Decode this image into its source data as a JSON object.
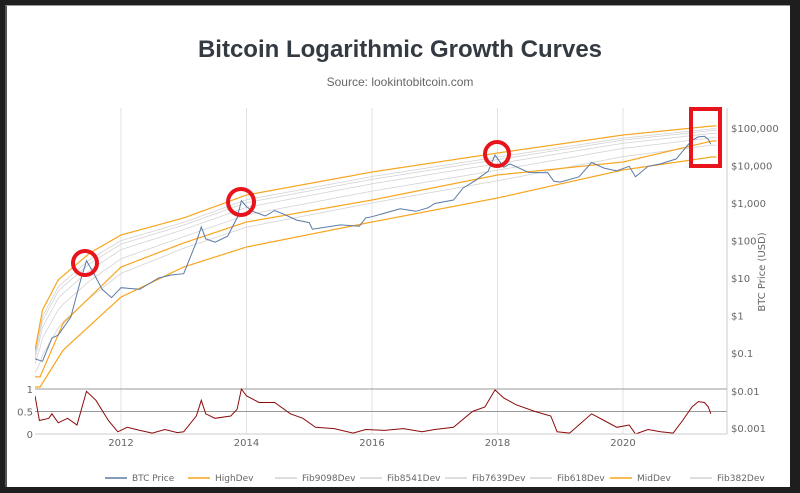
{
  "chart_data": {
    "type": "line",
    "title": "Bitcoin Logarithmic Growth Curves",
    "subtitle": "Source: lookintobitcoin.com",
    "ylabel": "BTC Price (USD)",
    "y_scale": "log",
    "ylim": [
      0.01,
      100000
    ],
    "xlim": [
      2010.63,
      2021.5
    ],
    "x_ticks": [
      "2012",
      "2014",
      "2016",
      "2018",
      "2020"
    ],
    "y_ticks": [
      "$100,000",
      "$10,000",
      "$1,000",
      "$100",
      "$10",
      "$1",
      "$0.1",
      "$0.01",
      "$0.001"
    ],
    "grid": "vertical",
    "legend_position": "bottom",
    "colors": {
      "btc": "#5b7aa6",
      "dev": "#f7a51c",
      "fib": "#d3d3d3",
      "oscillator": "#8b0b0b",
      "annotation": "#e8141c"
    },
    "legend": [
      {
        "name": "BTC Price",
        "color": "#5b7aa6"
      },
      {
        "name": "HighDev",
        "color": "#f7a51c"
      },
      {
        "name": "Fib9098Dev",
        "color": "#d3d3d3"
      },
      {
        "name": "Fib8541Dev",
        "color": "#d3d3d3"
      },
      {
        "name": "Fib7639Dev",
        "color": "#d3d3d3"
      },
      {
        "name": "Fib618Dev",
        "color": "#d3d3d3"
      },
      {
        "name": "MidDev",
        "color": "#f7a51c"
      },
      {
        "name": "Fib382Dev",
        "color": "#d3d3d3"
      }
    ],
    "curves": {
      "HighDev": [
        [
          2010.63,
          0.12
        ],
        [
          2010.75,
          1.4
        ],
        [
          2011.0,
          8.9
        ],
        [
          2011.5,
          46
        ],
        [
          2012.0,
          140
        ],
        [
          2013.0,
          400
        ],
        [
          2014.0,
          1630
        ],
        [
          2016.0,
          6700
        ],
        [
          2018.0,
          21500
        ],
        [
          2020.0,
          65000
        ],
        [
          2021.42,
          113000
        ]
      ],
      "MidDev": [
        [
          2010.71,
          0.023
        ],
        [
          2011.08,
          0.63
        ],
        [
          2012.0,
          19.6
        ],
        [
          2013.0,
          86
        ],
        [
          2014.0,
          311
        ],
        [
          2016.0,
          1200
        ],
        [
          2018.0,
          5580
        ],
        [
          2020.0,
          12400
        ],
        [
          2021.42,
          45000
        ]
      ],
      "LowDev": [
        [
          2010.71,
          0.0124
        ],
        [
          2011.08,
          0.12
        ],
        [
          2012.0,
          3.1
        ],
        [
          2013.0,
          19.6
        ],
        [
          2014.0,
          67
        ],
        [
          2016.0,
          311
        ],
        [
          2018.0,
          1360
        ],
        [
          2020.0,
          7600
        ],
        [
          2021.42,
          16900
        ]
      ]
    },
    "fib_levels": [
      {
        "name": "Fib9098Dev",
        "level": 0.9098
      },
      {
        "name": "Fib8541Dev",
        "level": 0.8541
      },
      {
        "name": "Fib7639Dev",
        "level": 0.7639
      },
      {
        "name": "Fib618Dev",
        "level": 0.618
      },
      {
        "name": "Fib382Dev",
        "level": 0.382
      }
    ],
    "btc_price": [
      [
        2010.63,
        0.07
      ],
      [
        2010.75,
        0.06
      ],
      [
        2010.9,
        0.25
      ],
      [
        2011.0,
        0.3
      ],
      [
        2011.2,
        0.9
      ],
      [
        2011.35,
        8
      ],
      [
        2011.45,
        29
      ],
      [
        2011.55,
        15
      ],
      [
        2011.7,
        5
      ],
      [
        2011.85,
        3
      ],
      [
        2012.0,
        5.5
      ],
      [
        2012.3,
        5
      ],
      [
        2012.6,
        10
      ],
      [
        2012.8,
        12
      ],
      [
        2013.0,
        13
      ],
      [
        2013.2,
        90
      ],
      [
        2013.28,
        230
      ],
      [
        2013.35,
        110
      ],
      [
        2013.5,
        90
      ],
      [
        2013.7,
        130
      ],
      [
        2013.85,
        400
      ],
      [
        2013.92,
        1150
      ],
      [
        2014.0,
        800
      ],
      [
        2014.1,
        600
      ],
      [
        2014.3,
        450
      ],
      [
        2014.45,
        630
      ],
      [
        2014.6,
        500
      ],
      [
        2014.8,
        350
      ],
      [
        2015.0,
        300
      ],
      [
        2015.05,
        200
      ],
      [
        2015.5,
        260
      ],
      [
        2015.8,
        240
      ],
      [
        2015.9,
        400
      ],
      [
        2016.0,
        430
      ],
      [
        2016.45,
        700
      ],
      [
        2016.7,
        600
      ],
      [
        2016.9,
        750
      ],
      [
        2017.0,
        970
      ],
      [
        2017.3,
        1200
      ],
      [
        2017.45,
        2500
      ],
      [
        2017.65,
        4000
      ],
      [
        2017.85,
        7000
      ],
      [
        2017.96,
        19000
      ],
      [
        2018.1,
        9000
      ],
      [
        2018.2,
        11000
      ],
      [
        2018.5,
        6500
      ],
      [
        2018.8,
        6400
      ],
      [
        2018.9,
        3800
      ],
      [
        2019.0,
        3600
      ],
      [
        2019.3,
        5000
      ],
      [
        2019.5,
        12000
      ],
      [
        2019.7,
        8500
      ],
      [
        2019.9,
        7200
      ],
      [
        2020.1,
        9500
      ],
      [
        2020.2,
        5000
      ],
      [
        2020.4,
        9500
      ],
      [
        2020.6,
        11000
      ],
      [
        2020.85,
        15000
      ],
      [
        2021.0,
        30000
      ],
      [
        2021.1,
        47000
      ],
      [
        2021.2,
        58000
      ],
      [
        2021.3,
        60000
      ],
      [
        2021.36,
        50000
      ],
      [
        2021.4,
        37000
      ]
    ],
    "oscillator": {
      "y_ticks": [
        "0",
        "0.5",
        "1"
      ],
      "ylim": [
        0,
        1
      ],
      "values": [
        [
          2010.63,
          0.85
        ],
        [
          2010.7,
          0.3
        ],
        [
          2010.85,
          0.35
        ],
        [
          2010.9,
          0.45
        ],
        [
          2011.0,
          0.25
        ],
        [
          2011.15,
          0.35
        ],
        [
          2011.3,
          0.2
        ],
        [
          2011.45,
          0.95
        ],
        [
          2011.6,
          0.75
        ],
        [
          2011.8,
          0.3
        ],
        [
          2011.95,
          0.05
        ],
        [
          2012.1,
          0.15
        ],
        [
          2012.3,
          0.08
        ],
        [
          2012.5,
          0.02
        ],
        [
          2012.7,
          0.1
        ],
        [
          2012.9,
          0.03
        ],
        [
          2013.0,
          0.05
        ],
        [
          2013.2,
          0.4
        ],
        [
          2013.28,
          0.75
        ],
        [
          2013.35,
          0.45
        ],
        [
          2013.5,
          0.35
        ],
        [
          2013.75,
          0.4
        ],
        [
          2013.85,
          0.55
        ],
        [
          2013.92,
          1.0
        ],
        [
          2014.0,
          0.85
        ],
        [
          2014.2,
          0.7
        ],
        [
          2014.45,
          0.7
        ],
        [
          2014.7,
          0.45
        ],
        [
          2014.9,
          0.35
        ],
        [
          2015.1,
          0.15
        ],
        [
          2015.4,
          0.12
        ],
        [
          2015.7,
          0.02
        ],
        [
          2015.9,
          0.1
        ],
        [
          2016.2,
          0.08
        ],
        [
          2016.5,
          0.12
        ],
        [
          2016.8,
          0.05
        ],
        [
          2017.0,
          0.1
        ],
        [
          2017.3,
          0.15
        ],
        [
          2017.6,
          0.5
        ],
        [
          2017.8,
          0.6
        ],
        [
          2017.96,
          0.98
        ],
        [
          2018.1,
          0.8
        ],
        [
          2018.3,
          0.65
        ],
        [
          2018.6,
          0.5
        ],
        [
          2018.85,
          0.4
        ],
        [
          2018.95,
          0.05
        ],
        [
          2019.15,
          0.02
        ],
        [
          2019.5,
          0.45
        ],
        [
          2019.7,
          0.3
        ],
        [
          2019.9,
          0.15
        ],
        [
          2020.1,
          0.2
        ],
        [
          2020.2,
          0.0
        ],
        [
          2020.4,
          0.1
        ],
        [
          2020.6,
          0.05
        ],
        [
          2020.8,
          0.02
        ],
        [
          2020.95,
          0.3
        ],
        [
          2021.1,
          0.6
        ],
        [
          2021.2,
          0.72
        ],
        [
          2021.3,
          0.7
        ],
        [
          2021.36,
          0.6
        ],
        [
          2021.4,
          0.45
        ]
      ]
    }
  }
}
